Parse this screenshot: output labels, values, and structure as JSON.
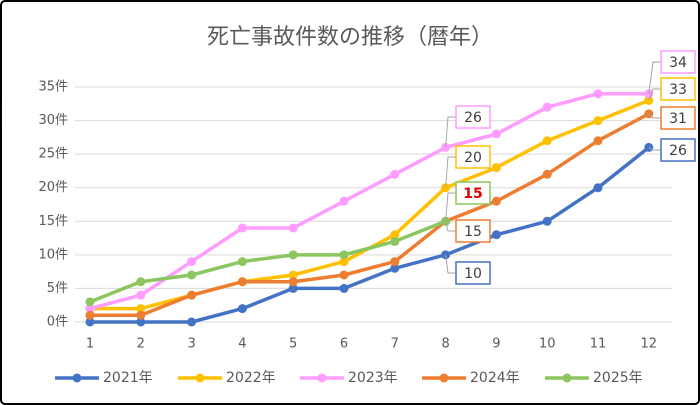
{
  "chart_data": {
    "type": "line",
    "title": "死亡事故件数の推移（暦年）",
    "categories": [
      "1",
      "2",
      "3",
      "4",
      "5",
      "6",
      "7",
      "8",
      "9",
      "10",
      "11",
      "12"
    ],
    "series": [
      {
        "name": "2021年",
        "color": "#4472c4",
        "values": [
          0,
          0,
          0,
          2,
          5,
          5,
          8,
          10,
          13,
          15,
          20,
          26
        ]
      },
      {
        "name": "2022年",
        "color": "#ffc000",
        "values": [
          2,
          2,
          4,
          6,
          7,
          9,
          13,
          20,
          23,
          27,
          30,
          33
        ]
      },
      {
        "name": "2023年",
        "color": "#ff9cff",
        "values": [
          2,
          4,
          9,
          14,
          14,
          18,
          22,
          26,
          28,
          32,
          34,
          34
        ]
      },
      {
        "name": "2024年",
        "color": "#ed7d31",
        "values": [
          1,
          1,
          4,
          6,
          6,
          7,
          9,
          15,
          18,
          22,
          27,
          31
        ]
      },
      {
        "name": "2025年",
        "color": "#8cc660",
        "values": [
          3,
          6,
          7,
          9,
          10,
          10,
          12,
          15,
          null,
          null,
          null,
          null
        ]
      }
    ],
    "ylim": [
      0,
      35
    ],
    "yticks": [
      {
        "value": 0,
        "label": "0件"
      },
      {
        "value": 5,
        "label": "5件"
      },
      {
        "value": 10,
        "label": "10件"
      },
      {
        "value": 15,
        "label": "15件"
      },
      {
        "value": 20,
        "label": "20件"
      },
      {
        "value": 25,
        "label": "25件"
      },
      {
        "value": 30,
        "label": "30件"
      },
      {
        "value": 35,
        "label": "35件"
      }
    ],
    "grid": true,
    "legend": "bottom"
  }
}
